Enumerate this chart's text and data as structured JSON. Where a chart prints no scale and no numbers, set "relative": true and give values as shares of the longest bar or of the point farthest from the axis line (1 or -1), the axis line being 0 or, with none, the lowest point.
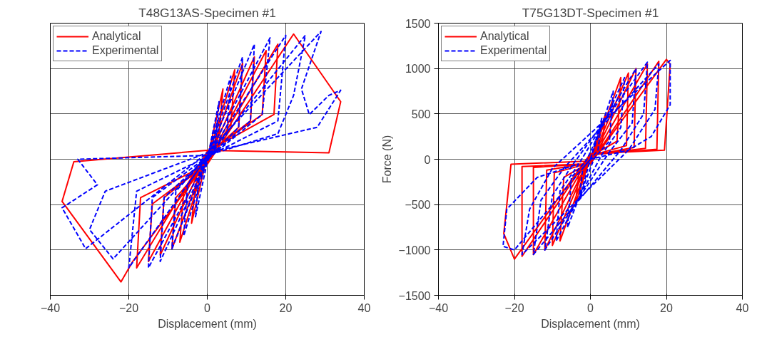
{
  "chart_data": [
    {
      "type": "line",
      "title": "T48G13AS-Specimen #1",
      "xlabel": "Displacement (mm)",
      "relative": true,
      "xlim": [
        -40,
        40
      ],
      "xticks": [
        -40,
        -20,
        0,
        20,
        40
      ],
      "grid": true,
      "legend": "top left",
      "series": [
        {
          "name": "Analytical",
          "color": "#ff0000",
          "line_style": "solid",
          "x": [
            0,
            4,
            3,
            0,
            -4,
            -3,
            0,
            7,
            6,
            0,
            -7,
            -6,
            0,
            9,
            8,
            0,
            -9,
            -8,
            0,
            12,
            11,
            0,
            -12,
            -11,
            0,
            15,
            14,
            0,
            -15,
            -14,
            0,
            18,
            17,
            0,
            -18,
            -17,
            0,
            22,
            34,
            31,
            0,
            -34,
            -37,
            -22,
            -19,
            -2
          ],
          "values": [
            0,
            0.55,
            0.2,
            0.03,
            -0.5,
            -0.2,
            0,
            0.7,
            0.25,
            0.03,
            -0.65,
            -0.25,
            -0.02,
            0.75,
            0.25,
            0.03,
            -0.7,
            -0.3,
            -0.02,
            0.8,
            0.3,
            0.04,
            -0.75,
            -0.3,
            -0.03,
            0.85,
            0.35,
            0.05,
            -0.8,
            -0.35,
            -0.03,
            0.9,
            0.35,
            0.06,
            -0.85,
            -0.3,
            -0.04,
            0.98,
            0.45,
            0.05,
            0.07,
            -0.02,
            -0.33,
            -0.96,
            -0.8,
            -0.1
          ]
        },
        {
          "name": "Experimental",
          "color": "#0000ff",
          "line_style": "dashed",
          "x": [
            0,
            3,
            2,
            0,
            -3,
            -2,
            0,
            6,
            5,
            0,
            -6,
            -5,
            0,
            9,
            8,
            0,
            -9,
            -8,
            0,
            12,
            11,
            0,
            -12,
            -11,
            0,
            16,
            14,
            0,
            -15,
            -14,
            0,
            20,
            18,
            0,
            -20,
            -18,
            0,
            25,
            22,
            18,
            0,
            -24,
            -30,
            -26,
            0,
            29,
            24,
            26,
            31,
            34,
            28,
            0,
            -31,
            -37,
            -28,
            -33,
            0
          ],
          "values": [
            0,
            0.45,
            0.1,
            -0.02,
            -0.45,
            -0.1,
            0.02,
            0.65,
            0.2,
            0,
            -0.6,
            -0.2,
            0.02,
            0.8,
            0.25,
            0,
            -0.7,
            -0.25,
            0.02,
            0.9,
            0.3,
            0,
            -0.8,
            -0.3,
            0.02,
            0.95,
            0.35,
            0,
            -0.85,
            -0.3,
            0.02,
            0.97,
            0.3,
            0.02,
            -0.85,
            -0.25,
            0.02,
            0.97,
            0.5,
            0.2,
            0.03,
            -0.78,
            -0.55,
            -0.25,
            0.05,
            1.0,
            0.55,
            0.35,
            0.5,
            0.54,
            0.25,
            0.05,
            -0.7,
            -0.38,
            -0.2,
            0.0,
            0.03
          ]
        }
      ]
    },
    {
      "type": "line",
      "title": "T75G13DT-Specimen #1",
      "xlabel": "Displacement (mm)",
      "ylabel": "Force (N)",
      "xlim": [
        -40,
        40
      ],
      "xticks": [
        -40,
        -20,
        0,
        20,
        40
      ],
      "ylim": [
        -1500,
        1500
      ],
      "yticks": [
        -1500,
        -1000,
        -500,
        0,
        500,
        1000,
        1500
      ],
      "grid": true,
      "legend": "top left",
      "series": [
        {
          "name": "Analytical",
          "color": "#ff0000",
          "line_style": "solid",
          "x": [
            0,
            4,
            3,
            0,
            -4,
            -3,
            0,
            8,
            7,
            0,
            -8,
            -7,
            0,
            10,
            9.5,
            0,
            -10,
            -9.5,
            0,
            12,
            11.5,
            0,
            -12,
            -11.5,
            0,
            15,
            14.5,
            0,
            -15,
            -15,
            0,
            18,
            17.5,
            0,
            -18,
            -18,
            0,
            20,
            21,
            19.5,
            0,
            -20,
            -22.8,
            -20.9,
            0
          ],
          "values": [
            0,
            500,
            150,
            20,
            -500,
            -150,
            -20,
            900,
            200,
            30,
            -900,
            -200,
            -30,
            950,
            150,
            40,
            -950,
            -150,
            -40,
            1000,
            130,
            40,
            -1000,
            -120,
            -40,
            1050,
            120,
            50,
            -1050,
            -90,
            -50,
            1080,
            110,
            50,
            -1070,
            -80,
            -50,
            1100,
            1050,
            100,
            60,
            -1100,
            -820,
            -55,
            -20
          ]
        },
        {
          "name": "Experimental",
          "color": "#0000ff",
          "line_style": "dashed",
          "x": [
            0,
            3,
            2,
            0,
            -3,
            -2,
            0,
            6,
            5,
            1,
            -6,
            -5,
            -1,
            9,
            8,
            3,
            -9,
            -8,
            -3,
            12,
            11,
            5,
            -12,
            -10,
            -5,
            15,
            14,
            8,
            -15,
            -13,
            -7,
            18,
            17,
            10,
            -18,
            -16,
            -10,
            21,
            21,
            16,
            10,
            0,
            -20,
            -23,
            -22,
            -14,
            -3
          ],
          "values": [
            0,
            450,
            100,
            0,
            -450,
            -100,
            0,
            750,
            200,
            10,
            -750,
            -200,
            -10,
            900,
            350,
            50,
            -900,
            -350,
            -50,
            1000,
            400,
            80,
            -1000,
            -400,
            -80,
            1070,
            500,
            100,
            -1050,
            -450,
            -100,
            1050,
            550,
            100,
            -1050,
            -550,
            -100,
            1090,
            600,
            250,
            100,
            0,
            -1000,
            -960,
            -550,
            -200,
            -50
          ]
        }
      ]
    }
  ]
}
